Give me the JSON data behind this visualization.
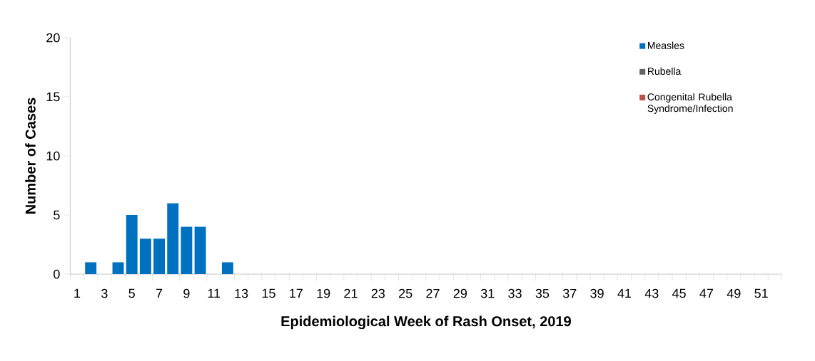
{
  "chart_data": {
    "type": "bar",
    "stacked": true,
    "xlabel": "Epidemiological Week of Rash Onset, 2019",
    "ylabel": "Number of Cases",
    "categories": [
      "1",
      null,
      "3",
      null,
      "5",
      null,
      "7",
      null,
      "9",
      null,
      "11",
      null,
      "13",
      null,
      "15",
      null,
      "17",
      null,
      "19",
      null,
      "21",
      null,
      "23",
      null,
      "25",
      null,
      "27",
      null,
      "29",
      null,
      "31",
      null,
      "33",
      null,
      "35",
      null,
      "37",
      null,
      "39",
      null,
      "41",
      null,
      "43",
      null,
      "45",
      null,
      "47",
      null,
      "49",
      null,
      "51",
      null
    ],
    "series": [
      {
        "name": "Measles",
        "color": "#0070c0",
        "values": [
          0,
          1,
          0,
          1,
          5,
          3,
          3,
          6,
          4,
          4,
          0,
          1,
          0,
          0,
          0,
          0,
          0,
          0,
          0,
          0,
          0,
          0,
          0,
          0,
          0,
          0,
          0,
          0,
          0,
          0,
          0,
          0,
          0,
          0,
          0,
          0,
          0,
          0,
          0,
          0,
          0,
          0,
          0,
          0,
          0,
          0,
          0,
          0,
          0,
          0,
          0,
          0
        ]
      },
      {
        "name": "Rubella",
        "color": "#646464",
        "values": [
          0,
          0,
          0,
          0,
          0,
          0,
          0,
          0,
          0,
          0,
          0,
          0,
          0,
          0,
          0,
          0,
          0,
          0,
          0,
          0,
          0,
          0,
          0,
          0,
          0,
          0,
          0,
          0,
          0,
          0,
          0,
          0,
          0,
          0,
          0,
          0,
          0,
          0,
          0,
          0,
          0,
          0,
          0,
          0,
          0,
          0,
          0,
          0,
          0,
          0,
          0,
          0
        ]
      },
      {
        "name": "Congenital Rubella Syndrome/Infection",
        "color": "#c0504d",
        "values": [
          0,
          0,
          0,
          0,
          0,
          0,
          0,
          0,
          0,
          0,
          0,
          0,
          0,
          0,
          0,
          0,
          0,
          0,
          0,
          0,
          0,
          0,
          0,
          0,
          0,
          0,
          0,
          0,
          0,
          0,
          0,
          0,
          0,
          0,
          0,
          0,
          0,
          0,
          0,
          0,
          0,
          0,
          0,
          0,
          0,
          0,
          0,
          0,
          0,
          0,
          0,
          0
        ]
      }
    ],
    "ylim": [
      0,
      20
    ],
    "yticks": [
      0,
      5,
      10,
      15,
      20
    ],
    "grid": false,
    "legend": "top right"
  }
}
